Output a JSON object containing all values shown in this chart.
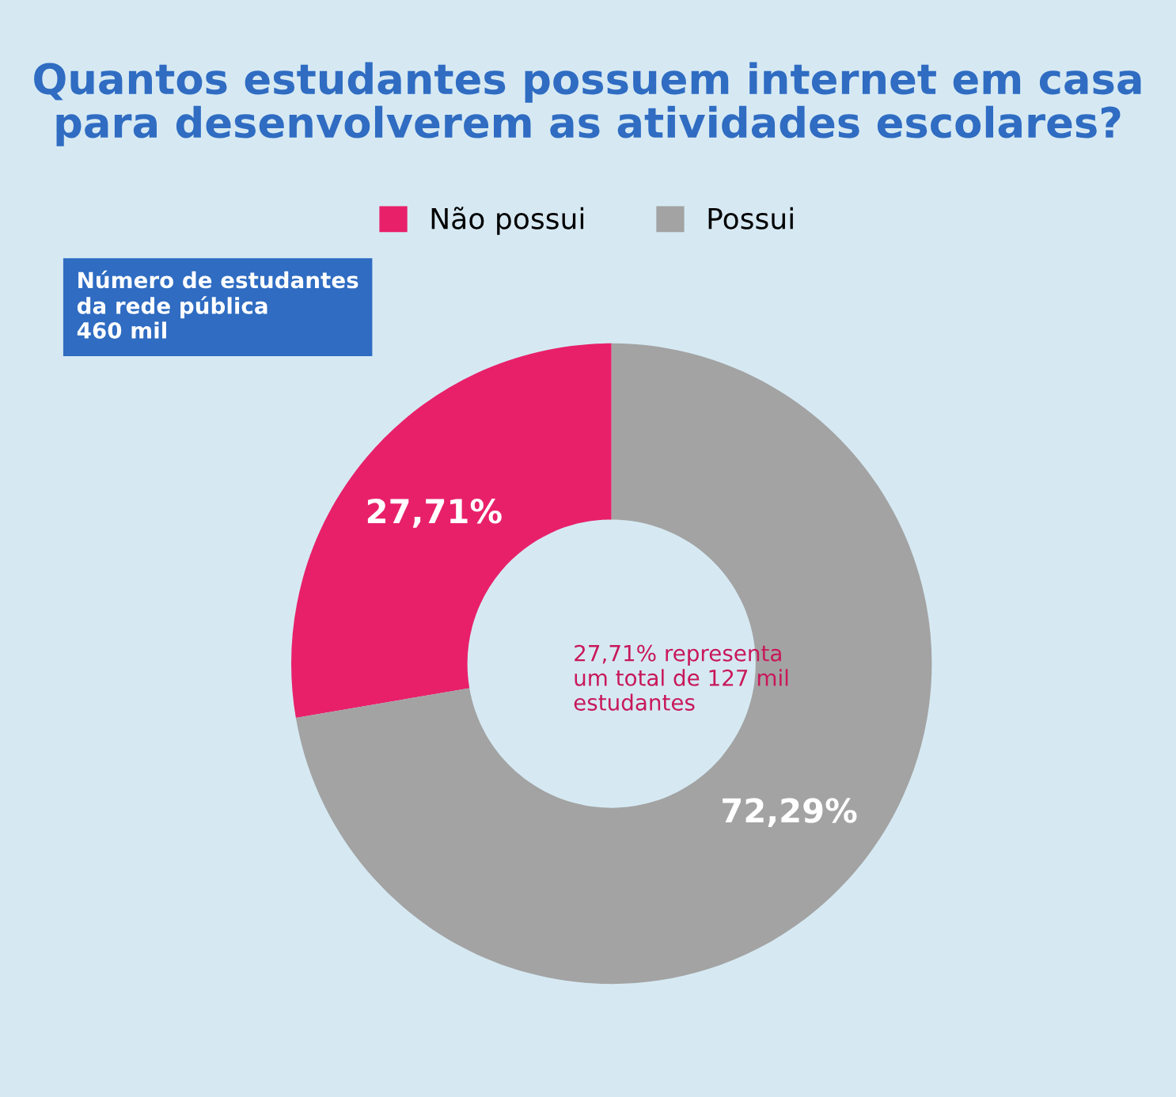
{
  "chart_data": {
    "type": "donut",
    "title": "Quantos estudantes possuem internet em casa\npara desenvolverem as atividades escolares?",
    "categories": [
      "Não possui",
      "Possui"
    ],
    "values": [
      27.71,
      72.29
    ],
    "colors": [
      "#e8206a",
      "#a3a3a3"
    ],
    "value_labels": [
      "27,71%",
      "72,29%"
    ],
    "legend": "top",
    "annotations": [
      "Número de estudantes\nda rede pública\n460 mil",
      "27,71% representa\num total de 127 mil\nestudantes"
    ]
  }
}
